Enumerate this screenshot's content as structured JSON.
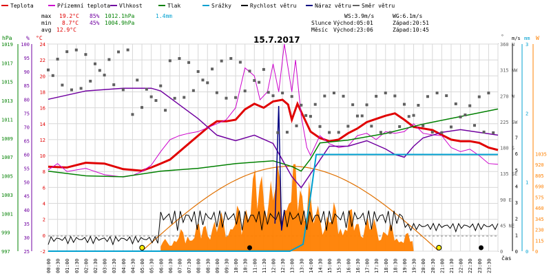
{
  "title": "15.7.2017",
  "legend": [
    {
      "name": "Teplota",
      "color": "#e00000"
    },
    {
      "name": "Přízemní teplota",
      "color": "#cc00cc"
    },
    {
      "name": "Vlhkost",
      "color": "#7000a0"
    },
    {
      "name": "Tlak",
      "color": "#008000"
    },
    {
      "name": "Srážky",
      "color": "#00a0d0"
    },
    {
      "name": "Rychlost větru",
      "color": "#000000"
    },
    {
      "name": "Náraz větru",
      "color": "#000080"
    },
    {
      "name": "Směr větru",
      "color": "#606060"
    }
  ],
  "stats": {
    "max_label": "max",
    "max_temp": "19.2°C",
    "max_hum": "85%",
    "max_press": "1012.1hPa",
    "rain": "1.4mm",
    "min_label": "min",
    "min_temp": "8.7°C",
    "min_hum": "45%",
    "min_press": "1004.9hPa",
    "avg_label": "avg",
    "avg_temp": "12.9°C"
  },
  "wind_info": {
    "ws": "WS:3.9m/s",
    "wg": "WG:6.1m/s"
  },
  "sun": {
    "label": "Slunce",
    "rise": "Východ:05:01",
    "set": "Západ:20:51"
  },
  "moon": {
    "label": "Měsíc",
    "rise": "Východ:23:06",
    "set": "Západ:10:45"
  },
  "axis_units": {
    "hpa": "hPa",
    "pct": "%",
    "degc": "°C",
    "deg": "°",
    "ms": "m/s",
    "mm": "mm",
    "w": "W",
    "time": "čas"
  },
  "colors": {
    "temp": "#e00000",
    "ground": "#cc00cc",
    "hum": "#7000a0",
    "press": "#008000",
    "rain": "#00a0d0",
    "wind": "#000000",
    "gust": "#000080",
    "dir": "#606060",
    "solar": "#ff8000",
    "sunpath": "#e07000"
  },
  "chart_data": {
    "type": "line",
    "x_ticks": [
      "00:00",
      "00:30",
      "01:00",
      "01:30",
      "02:00",
      "02:30",
      "03:00",
      "03:30",
      "04:00",
      "04:30",
      "05:00",
      "05:30",
      "06:00",
      "06:30",
      "07:00",
      "07:30",
      "08:00",
      "08:30",
      "09:00",
      "09:30",
      "10:00",
      "10:30",
      "11:00",
      "11:30",
      "12:00",
      "12:30",
      "13:00",
      "13:30",
      "14:00",
      "14:30",
      "15:00",
      "15:30",
      "16:00",
      "16:30",
      "17:00",
      "17:30",
      "18:00",
      "18:30",
      "19:00",
      "19:30",
      "20:00",
      "20:30",
      "21:00",
      "21:30",
      "22:00",
      "22:30",
      "23:00",
      "23:30"
    ],
    "axes": {
      "pressure": {
        "ticks": [
          "1019",
          "1017",
          "1015",
          "1013",
          "1011",
          "1009",
          "1007",
          "1005",
          "1003",
          "1001",
          "999",
          "997"
        ],
        "min": 997,
        "max": 1019
      },
      "humidity": {
        "ticks": [
          "100",
          "95",
          "90",
          "85",
          "80",
          "75",
          "70",
          "65",
          "60",
          "55",
          "50",
          "45",
          "40",
          "35",
          "30",
          "25"
        ],
        "min": 25,
        "max": 100
      },
      "temperature": {
        "ticks": [
          "24",
          "22",
          "20",
          "18",
          "16",
          "14",
          "12",
          "10",
          "8",
          "6",
          "4",
          "2",
          "0",
          "-2"
        ],
        "min": -2,
        "max": 24
      },
      "direction": {
        "ticks": [
          "360 N",
          "315 NW",
          "270 W",
          "225 SW",
          "180 S",
          "135 SE",
          "90 E",
          "45 NE",
          "0"
        ],
        "min": 0,
        "max": 360
      },
      "wind": {
        "ticks": [
          "7",
          "6",
          "5",
          "4",
          "3",
          "2",
          "1",
          "0"
        ],
        "min": 0,
        "max": 7
      },
      "rain": {
        "ticks": [
          "3",
          "2",
          "1",
          "0"
        ],
        "min": 0,
        "max": 3
      },
      "solar": {
        "ticks": [
          "1035",
          "920",
          "805",
          "690",
          "575",
          "460",
          "345",
          "230",
          "115",
          "0"
        ],
        "min": 0,
        "max": 1035
      }
    },
    "series": [
      {
        "name": "Teplota",
        "unit": "°C",
        "x": [
          0,
          1,
          2,
          3,
          4,
          5,
          5.5,
          6,
          6.5,
          7,
          7.5,
          8,
          8.5,
          9,
          9.5,
          10,
          10.5,
          11,
          11.5,
          12,
          12.5,
          12.8,
          13,
          13.3,
          13.6,
          14,
          14.5,
          15,
          15.5,
          16,
          16.5,
          17,
          17.5,
          18,
          18.5,
          19,
          19.5,
          20,
          20.5,
          21,
          21.5,
          22,
          22.5,
          23,
          23.5,
          24
        ],
        "y": [
          8.6,
          8.5,
          9.1,
          9.0,
          8.3,
          8.1,
          8.5,
          9.0,
          9.5,
          10.5,
          11.5,
          12.5,
          13.5,
          14.3,
          14.3,
          14.5,
          15.8,
          16.5,
          16.0,
          16.8,
          17.0,
          16.4,
          14.5,
          16.5,
          15.0,
          13.0,
          12.2,
          11.8,
          12.0,
          12.8,
          13.4,
          14.2,
          14.6,
          15.0,
          15.3,
          14.5,
          13.6,
          13.4,
          13.2,
          12.6,
          12.0,
          11.8,
          11.8,
          11.6,
          11.0,
          10.7
        ]
      },
      {
        "name": "Přízemní teplota",
        "unit": "°C",
        "x": [
          0,
          0.5,
          1,
          2,
          3,
          4,
          4.5,
          5,
          5.5,
          6,
          6.5,
          7,
          7.5,
          8,
          8.5,
          9,
          9.5,
          10,
          10.5,
          11,
          11.3,
          11.7,
          12,
          12.3,
          12.6,
          13,
          13.2,
          13.5,
          13.8,
          14,
          14.5,
          15,
          15.5,
          16,
          16.5,
          17,
          17.5,
          18,
          18.5,
          19,
          19.5,
          20,
          20.5,
          21,
          21.5,
          22,
          22.5,
          23,
          23.5,
          24
        ],
        "y": [
          8.2,
          9.0,
          8.0,
          8.4,
          7.6,
          7.3,
          7.5,
          8.0,
          8.8,
          10.5,
          12.0,
          12.5,
          12.8,
          13.0,
          13.5,
          14.0,
          14.5,
          16.0,
          21.0,
          20.0,
          17.0,
          18.0,
          21.5,
          18.0,
          24.0,
          18.0,
          22.0,
          15.0,
          11.0,
          10.0,
          12.5,
          11.5,
          11.0,
          11.2,
          12.5,
          12.8,
          12.0,
          13.0,
          12.8,
          13.0,
          14.0,
          12.8,
          12.6,
          12.5,
          11.0,
          10.5,
          10.8,
          10.0,
          9.0,
          8.9
        ]
      }
    ]
  }
}
